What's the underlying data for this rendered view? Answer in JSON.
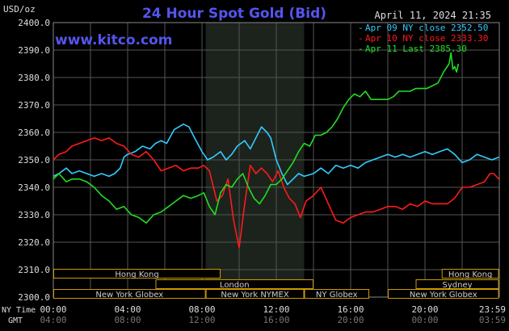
{
  "chart_data": {
    "type": "line",
    "title": "24 Hour Spot Gold (Bid)",
    "site": "www.kitco.com",
    "date_stamp": "April 11, 2024 21:35",
    "y_unit_label": "USD/oz",
    "ylim": [
      2300,
      2400
    ],
    "y_ticks": [
      "2400.0",
      "2390.0",
      "2380.0",
      "2370.0",
      "2360.0",
      "2350.0",
      "2340.0",
      "2330.0",
      "2320.0",
      "2310.0",
      "2300.0"
    ],
    "x_row_labels": {
      "ny": "NY Time",
      "gmt": "GMT"
    },
    "x_ticks_ny": [
      "00:00",
      "04:00",
      "08:00",
      "12:00",
      "16:00",
      "20:00",
      "23:59"
    ],
    "x_ticks_gmt": [
      "04:00",
      "08:00",
      "12:00",
      "16:00",
      "20:00",
      "00:00",
      "03:59"
    ],
    "x_hours": [
      0,
      4,
      8,
      12,
      16,
      20,
      23.98
    ],
    "shaded_window_hours": [
      8.2,
      13.5
    ],
    "colors": {
      "apr09": "#33ccff",
      "apr10": "#ff1a1a",
      "apr11": "#22dd22",
      "title": "#5555ee",
      "grid": "#555555",
      "session_border": "#cc9900",
      "session_text": "#cccccc"
    },
    "series": [
      {
        "name": "Apr 09 NY close",
        "legend_label": "Apr 09 NY close 2352.50",
        "key": "apr09",
        "x": [
          0,
          0.3,
          0.7,
          1,
          1.4,
          1.8,
          2.2,
          2.6,
          3,
          3.3,
          3.6,
          3.8,
          4,
          4.4,
          4.8,
          5.2,
          5.5,
          5.8,
          6.1,
          6.5,
          7,
          7.3,
          7.6,
          8,
          8.3,
          8.6,
          9,
          9.3,
          9.6,
          9.9,
          10.3,
          10.6,
          10.9,
          11.2,
          11.5,
          11.7,
          12,
          12.3,
          12.6,
          12.9,
          13.2,
          13.5,
          14,
          14.4,
          14.8,
          15.2,
          15.6,
          16,
          16.4,
          16.8,
          17.2,
          17.6,
          18,
          18.4,
          18.8,
          19.2,
          19.6,
          20,
          20.4,
          20.8,
          21.2,
          21.6,
          22,
          22.4,
          22.8,
          23.2,
          23.6,
          23.98
        ],
        "y": [
          2344,
          2345,
          2347,
          2345,
          2346,
          2345,
          2344,
          2345,
          2344,
          2345,
          2347,
          2351,
          2352,
          2353,
          2355,
          2354,
          2356,
          2357,
          2356,
          2361,
          2363,
          2362,
          2358,
          2353,
          2350,
          2351,
          2353,
          2350,
          2352,
          2355,
          2357,
          2354,
          2358,
          2362,
          2360,
          2358,
          2350,
          2345,
          2341,
          2343,
          2345,
          2344,
          2345,
          2347,
          2345,
          2348,
          2347,
          2348,
          2347,
          2349,
          2350,
          2351,
          2352,
          2351,
          2352,
          2351,
          2352,
          2353,
          2352,
          2353,
          2354,
          2352,
          2349,
          2350,
          2352,
          2351,
          2350,
          2351
        ]
      },
      {
        "name": "Apr 10 NY close",
        "legend_label": "Apr 10 NY close 2333.30",
        "key": "apr10",
        "x": [
          0,
          0.3,
          0.7,
          1,
          1.4,
          1.8,
          2.2,
          2.6,
          3,
          3.4,
          3.8,
          4.2,
          4.6,
          5,
          5.4,
          5.8,
          6.2,
          6.6,
          7,
          7.4,
          7.8,
          8.1,
          8.4,
          8.8,
          9.1,
          9.4,
          9.7,
          10,
          10.3,
          10.6,
          10.9,
          11.2,
          11.5,
          11.8,
          12.1,
          12.4,
          12.7,
          13,
          13.3,
          13.6,
          14,
          14.4,
          14.8,
          15.2,
          15.6,
          16,
          16.4,
          16.8,
          17.2,
          17.6,
          18,
          18.4,
          18.8,
          19.2,
          19.6,
          20,
          20.4,
          20.8,
          21.2,
          21.6,
          22,
          22.4,
          22.8,
          23.2,
          23.5,
          23.7,
          23.98
        ],
        "y": [
          2350,
          2352,
          2353,
          2355,
          2356,
          2357,
          2358,
          2357,
          2358,
          2356,
          2355,
          2352,
          2351,
          2353,
          2350,
          2346,
          2347,
          2348,
          2346,
          2347,
          2347,
          2348,
          2346,
          2335,
          2337,
          2343,
          2328,
          2318,
          2334,
          2348,
          2345,
          2347,
          2345,
          2342,
          2346,
          2340,
          2336,
          2334,
          2329,
          2335,
          2337,
          2340,
          2334,
          2328,
          2327,
          2329,
          2330,
          2331,
          2331,
          2332,
          2333,
          2333,
          2332,
          2334,
          2333,
          2335,
          2334,
          2334,
          2334,
          2336,
          2340,
          2340,
          2341,
          2342,
          2345,
          2345,
          2343
        ]
      },
      {
        "name": "Apr 11 Last",
        "legend_label": "Apr 11 Last 2385.30",
        "key": "apr11",
        "x": [
          0,
          0.3,
          0.7,
          1,
          1.4,
          1.8,
          2.2,
          2.6,
          3,
          3.4,
          3.8,
          4.2,
          4.6,
          5,
          5.4,
          5.8,
          6.2,
          6.6,
          7,
          7.4,
          7.8,
          8.1,
          8.4,
          8.7,
          9,
          9.3,
          9.6,
          9.9,
          10.2,
          10.5,
          10.8,
          11.1,
          11.4,
          11.7,
          12,
          12.3,
          12.6,
          12.9,
          13.2,
          13.5,
          13.8,
          14.1,
          14.4,
          14.7,
          15,
          15.3,
          15.6,
          15.9,
          16.2,
          16.5,
          16.8,
          17.1,
          17.4,
          17.7,
          18,
          18.3,
          18.6,
          18.9,
          19.2,
          19.5,
          19.8,
          20.1,
          20.4,
          20.7,
          21,
          21.3,
          21.4,
          21.5,
          21.6,
          21.7,
          21.8
        ],
        "y": [
          2343,
          2345,
          2342,
          2343,
          2343,
          2342,
          2340,
          2337,
          2335,
          2332,
          2333,
          2330,
          2329,
          2327,
          2330,
          2331,
          2333,
          2335,
          2337,
          2336,
          2337,
          2338,
          2333,
          2330,
          2338,
          2341,
          2340,
          2343,
          2345,
          2340,
          2336,
          2334,
          2337,
          2341,
          2341,
          2343,
          2346,
          2349,
          2353,
          2356,
          2355,
          2359,
          2359,
          2360,
          2362,
          2365,
          2369,
          2372,
          2374,
          2373,
          2375,
          2372,
          2372,
          2372,
          2372,
          2373,
          2375,
          2375,
          2375,
          2376,
          2376,
          2376,
          2377,
          2378,
          2382,
          2385,
          2389,
          2383,
          2384,
          2382,
          2385
        ]
      }
    ],
    "sessions": [
      {
        "label": "Hong Kong",
        "row": 0,
        "start": 0,
        "end": 9
      },
      {
        "label": "London",
        "row": 1,
        "start": 5.5,
        "end": 14
      },
      {
        "label": "New York Globex",
        "row": 2,
        "start": 0,
        "end": 8.2
      },
      {
        "label": "New York NYMEX",
        "row": 2,
        "start": 8.2,
        "end": 13.5
      },
      {
        "label": "NY Globex",
        "row": 2,
        "start": 13.5,
        "end": 17
      },
      {
        "label": "Hong Kong",
        "row": 0,
        "start": 20.9,
        "end": 23.98
      },
      {
        "label": "Sydney",
        "row": 1,
        "start": 19.5,
        "end": 23.98
      },
      {
        "label": "New York Globex",
        "row": 2,
        "start": 18,
        "end": 23.98
      }
    ]
  }
}
